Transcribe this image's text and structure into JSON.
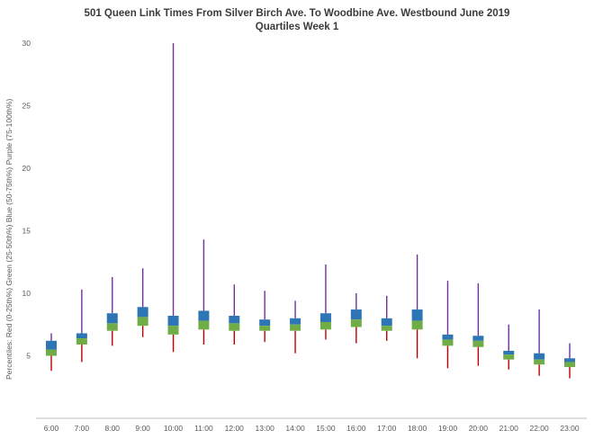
{
  "chart_data": {
    "type": "boxplot",
    "title_line1": "501 Queen Link Times From Silver Birch Ave. To Woodbine Ave. Westbound June 2019",
    "title_line2": "Quartiles Week 1",
    "ylabel": "Percentiles:  Red (0-25th%)  Green (25-50th%)  Blue (50-75th%)  Purple (75-100th%)",
    "ylim": [
      0,
      30
    ],
    "yticks": [
      5,
      10,
      15,
      20,
      25,
      30
    ],
    "grid": false,
    "legend_position": "none",
    "colors": {
      "red": "#C00000",
      "green": "#70AD47",
      "blue": "#2E75B6",
      "purple": "#7030A0",
      "axis_line": "#BFBFBF"
    },
    "categories": [
      "6:00",
      "7:00",
      "8:00",
      "9:00",
      "10:00",
      "11:00",
      "12:00",
      "13:00",
      "14:00",
      "15:00",
      "16:00",
      "17:00",
      "18:00",
      "19:00",
      "20:00",
      "21:00",
      "22:00",
      "23:00"
    ],
    "points": [
      {
        "time": "6:00",
        "p0": 3.8,
        "p25": 5.0,
        "p50": 5.5,
        "p75": 6.2,
        "p100": 6.8
      },
      {
        "time": "7:00",
        "p0": 4.5,
        "p25": 5.9,
        "p50": 6.4,
        "p75": 6.8,
        "p100": 10.3
      },
      {
        "time": "8:00",
        "p0": 5.8,
        "p25": 7.0,
        "p50": 7.6,
        "p75": 8.4,
        "p100": 11.3
      },
      {
        "time": "9:00",
        "p0": 6.5,
        "p25": 7.4,
        "p50": 8.1,
        "p75": 8.9,
        "p100": 12.0
      },
      {
        "time": "10:00",
        "p0": 5.3,
        "p25": 6.7,
        "p50": 7.4,
        "p75": 8.2,
        "p100": 30.0
      },
      {
        "time": "11:00",
        "p0": 5.9,
        "p25": 7.1,
        "p50": 7.8,
        "p75": 8.6,
        "p100": 14.3
      },
      {
        "time": "12:00",
        "p0": 5.9,
        "p25": 7.0,
        "p50": 7.6,
        "p75": 8.2,
        "p100": 10.7
      },
      {
        "time": "13:00",
        "p0": 6.1,
        "p25": 7.0,
        "p50": 7.4,
        "p75": 7.9,
        "p100": 10.2
      },
      {
        "time": "14:00",
        "p0": 5.2,
        "p25": 7.0,
        "p50": 7.5,
        "p75": 8.0,
        "p100": 9.4
      },
      {
        "time": "15:00",
        "p0": 6.3,
        "p25": 7.1,
        "p50": 7.7,
        "p75": 8.4,
        "p100": 12.3
      },
      {
        "time": "16:00",
        "p0": 6.0,
        "p25": 7.3,
        "p50": 7.9,
        "p75": 8.7,
        "p100": 10.0
      },
      {
        "time": "17:00",
        "p0": 6.2,
        "p25": 7.0,
        "p50": 7.4,
        "p75": 8.0,
        "p100": 9.8
      },
      {
        "time": "18:00",
        "p0": 4.8,
        "p25": 7.1,
        "p50": 7.8,
        "p75": 8.7,
        "p100": 13.1
      },
      {
        "time": "19:00",
        "p0": 4.0,
        "p25": 5.8,
        "p50": 6.3,
        "p75": 6.7,
        "p100": 11.0
      },
      {
        "time": "20:00",
        "p0": 4.2,
        "p25": 5.7,
        "p50": 6.2,
        "p75": 6.6,
        "p100": 10.8
      },
      {
        "time": "21:00",
        "p0": 3.9,
        "p25": 4.7,
        "p50": 5.1,
        "p75": 5.4,
        "p100": 7.5
      },
      {
        "time": "22:00",
        "p0": 3.4,
        "p25": 4.3,
        "p50": 4.7,
        "p75": 5.2,
        "p100": 8.7
      },
      {
        "time": "23:00",
        "p0": 3.2,
        "p25": 4.1,
        "p50": 4.5,
        "p75": 4.8,
        "p100": 6.0
      }
    ]
  }
}
